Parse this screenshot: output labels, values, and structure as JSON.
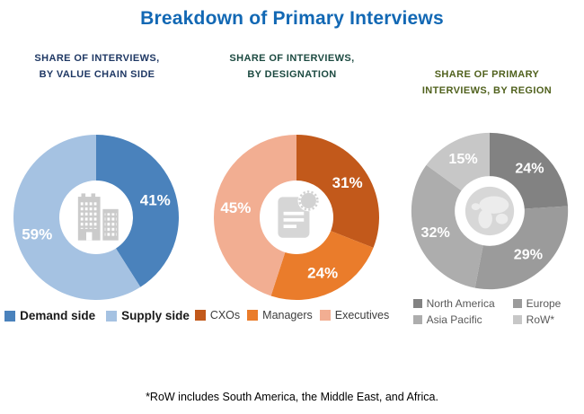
{
  "page_title": "Breakdown of Primary Interviews",
  "title_color": "#1268B4",
  "footnote": "*RoW includes South America, the Middle East, and Africa.",
  "chart_data": [
    {
      "type": "pie",
      "subtype": "donut",
      "title": "Share of Interviews, by Value Chain Side",
      "heading": {
        "line1": "SHARE OF INTERVIEWS,",
        "line2": "BY VALUE CHAIN SIDE",
        "color": "#1F3864"
      },
      "categories": [
        "Demand side",
        "Supply side"
      ],
      "values": [
        41,
        59
      ],
      "labels": [
        "41%",
        "59%"
      ],
      "colors": [
        "#4A82BC",
        "#A5C2E2"
      ],
      "label_color": "#FFFFFF",
      "center_icon": "building-icon",
      "legend_position": "bottom"
    },
    {
      "type": "pie",
      "subtype": "donut",
      "title": "Share of Interviews, by Designation",
      "heading": {
        "line1": "SHARE OF INTERVIEWS,",
        "line2": "BY DESIGNATION",
        "color": "#1C4A41"
      },
      "categories": [
        "CXOs",
        "Managers",
        "Executives"
      ],
      "values": [
        31,
        24,
        45
      ],
      "labels": [
        "31%",
        "24%",
        "45%"
      ],
      "colors": [
        "#C2591B",
        "#EA7C2B",
        "#F2AE92"
      ],
      "label_color": "#FFFFFF",
      "center_icon": "document-icon",
      "legend_position": "bottom"
    },
    {
      "type": "pie",
      "subtype": "donut",
      "title": "Share of Primary Interviews, by Region",
      "heading": {
        "line1": "SHARE OF PRIMARY",
        "line2": "INTERVIEWS, BY REGION",
        "color": "#50611D"
      },
      "categories": [
        "North America",
        "Europe",
        "Asia Pacific",
        "RoW*"
      ],
      "values": [
        24,
        29,
        32,
        15
      ],
      "labels": [
        "24%",
        "29%",
        "32%",
        "15%"
      ],
      "colors": [
        "#828282",
        "#9B9B9B",
        "#ADADAD",
        "#C7C7C7"
      ],
      "label_color": "#FFFFFF",
      "center_icon": "globe-icon",
      "legend_position": "bottom"
    }
  ]
}
